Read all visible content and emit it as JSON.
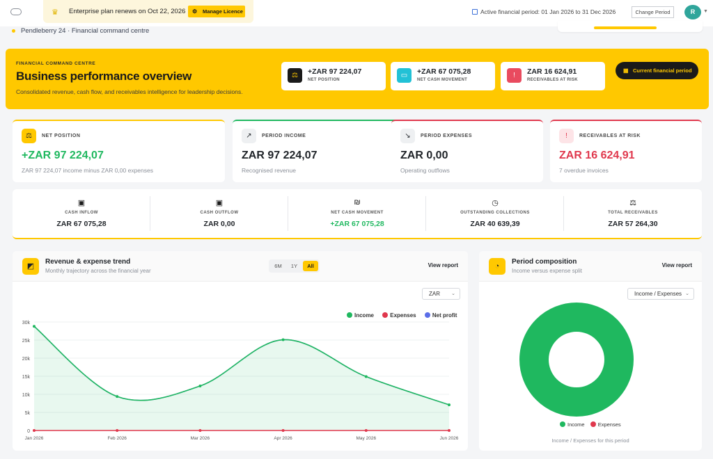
{
  "topbar": {
    "renewal_text": "Enterprise plan renews on Oct 22, 2026",
    "manage_label": "Manage Licence",
    "period_text": "Active financial period: 01 Jan 2026 to 31 Dec 2026",
    "change_period_label": "Change Period",
    "avatar_initial": "R"
  },
  "breadcrumb": "Pendleberry 24 · Financial command centre",
  "hero": {
    "eyebrow": "FINANCIAL COMMAND CENTRE",
    "title": "Business performance overview",
    "subtitle": "Consolidated revenue, cash flow, and receivables intelligence for leadership decisions.",
    "cards": [
      {
        "value": "+ZAR 97 224,07",
        "label": "NET POSITION",
        "icon": "scale-icon",
        "color": "#1fb85f"
      },
      {
        "value": "+ZAR 67 075,28",
        "label": "NET CASH MOVEMENT",
        "icon": "cash-icon",
        "color": "#1fb85f"
      },
      {
        "value": "ZAR 16 624,91",
        "label": "RECEIVABLES AT RISK",
        "icon": "alert-icon",
        "color": "#e0384d"
      }
    ],
    "period_button": "Current financial period"
  },
  "kpis": [
    {
      "title": "NET POSITION",
      "value": "+ZAR 97 224,07",
      "sub": "ZAR 97 224,07 income minus ZAR 0,00 expenses",
      "color": "#1fb85f",
      "icon": "scale-icon"
    },
    {
      "title": "PERIOD INCOME",
      "value": "ZAR 97 224,07",
      "sub": "Recognised revenue",
      "color": "#1a1a1a",
      "icon": "trend-up-icon"
    },
    {
      "title": "PERIOD EXPENSES",
      "value": "ZAR 0,00",
      "sub": "Operating outflows",
      "color": "#1a1a1a",
      "icon": "trend-down-icon"
    },
    {
      "title": "RECEIVABLES AT RISK",
      "value": "ZAR 16 624,91",
      "sub": "7 overdue invoices",
      "color": "#e0384d",
      "icon": "alert-icon"
    }
  ],
  "cashflow": [
    {
      "label": "CASH INFLOW",
      "value": "ZAR 67 075,28",
      "icon": "cash-in-icon",
      "color": "#1a1a1a"
    },
    {
      "label": "CASH OUTFLOW",
      "value": "ZAR 0,00",
      "icon": "cash-out-icon",
      "color": "#1a1a1a"
    },
    {
      "label": "NET CASH MOVEMENT",
      "value": "+ZAR 67 075,28",
      "icon": "net-cash-icon",
      "color": "#1fb85f"
    },
    {
      "label": "OUTSTANDING COLLECTIONS",
      "value": "ZAR 40 639,39",
      "icon": "clock-icon",
      "color": "#1a1a1a"
    },
    {
      "label": "TOTAL RECEIVABLES",
      "value": "ZAR 57 264,30",
      "icon": "scale-icon",
      "color": "#1a1a1a"
    }
  ],
  "trend": {
    "title": "Revenue & expense trend",
    "subtitle": "Monthly trajectory across the financial year",
    "ranges": [
      "6M",
      "1Y",
      "All"
    ],
    "active_range": "All",
    "view_report": "View report",
    "currency": "ZAR"
  },
  "composition": {
    "title": "Period composition",
    "subtitle": "Income versus expense split",
    "view_report": "View report",
    "selector": "Income / Expenses",
    "legend": [
      "Income",
      "Expenses"
    ],
    "footnote": "Income / Expenses for this period"
  },
  "chart_data": [
    {
      "type": "area",
      "x": [
        "Jan 2026",
        "Feb 2026",
        "Mar 2026",
        "Apr 2026",
        "May 2026",
        "Jun 2026"
      ],
      "series": [
        {
          "name": "Income",
          "values": [
            28800,
            9400,
            12300,
            25100,
            14900,
            7100
          ],
          "color": "#1fb85f"
        },
        {
          "name": "Expenses",
          "values": [
            0,
            0,
            0,
            0,
            0,
            0
          ],
          "color": "#e0384d"
        },
        {
          "name": "Net profit",
          "values": [
            28800,
            9400,
            12300,
            25100,
            14900,
            7100
          ],
          "color": "#5b6ee8"
        }
      ],
      "yticks": [
        "0",
        "5k",
        "10k",
        "15k",
        "20k",
        "25k",
        "30k"
      ],
      "ylim": [
        0,
        30000
      ],
      "grid": true,
      "legend": "top-right"
    },
    {
      "type": "pie",
      "categories": [
        "Income",
        "Expenses"
      ],
      "values": [
        97224.07,
        0
      ],
      "colors": [
        "#1fb85f",
        "#e0384d"
      ],
      "legend": "bottom"
    }
  ]
}
